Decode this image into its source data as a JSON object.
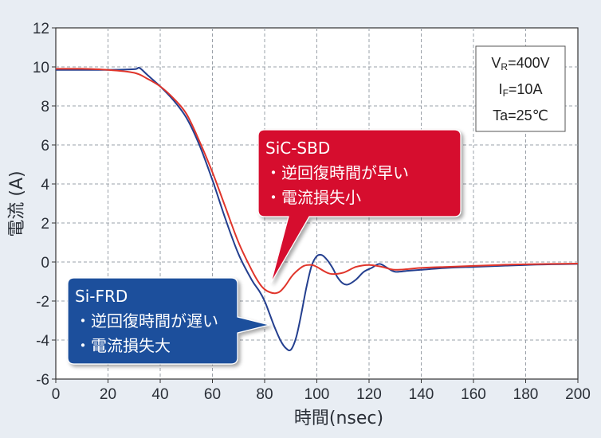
{
  "chart_data": {
    "type": "line",
    "xlabel": "時間(nsec)",
    "ylabel": "電流 (A)",
    "xlim": [
      0,
      200
    ],
    "ylim": [
      -6,
      12
    ],
    "xticks": [
      0,
      20,
      40,
      60,
      80,
      100,
      120,
      140,
      160,
      180,
      200
    ],
    "yticks": [
      -6,
      -4,
      -2,
      0,
      2,
      4,
      6,
      8,
      10,
      12
    ],
    "grid": true,
    "conditions": [
      "VR=400V",
      "IF=10A",
      "Ta=25℃"
    ],
    "series": [
      {
        "name": "Si-FRD",
        "color": "#243f8f",
        "x": [
          0,
          10,
          20,
          30,
          32,
          35,
          40,
          45,
          50,
          55,
          60,
          65,
          70,
          75,
          78,
          80,
          82,
          84,
          86,
          88,
          90,
          92,
          94,
          96,
          98,
          100,
          102,
          104,
          106,
          108,
          110,
          112,
          115,
          118,
          121,
          124,
          127,
          130,
          135,
          140,
          150,
          160,
          170,
          180,
          190,
          200
        ],
        "values": [
          9.85,
          9.85,
          9.85,
          9.88,
          9.95,
          9.6,
          9.0,
          8.3,
          7.4,
          6.0,
          4.2,
          2.2,
          0.4,
          -0.9,
          -1.5,
          -2.0,
          -2.7,
          -3.4,
          -4.0,
          -4.4,
          -4.5,
          -3.9,
          -2.7,
          -1.3,
          -0.2,
          0.3,
          0.35,
          0.1,
          -0.3,
          -0.8,
          -1.1,
          -1.15,
          -0.9,
          -0.5,
          -0.3,
          -0.1,
          -0.3,
          -0.5,
          -0.45,
          -0.4,
          -0.3,
          -0.25,
          -0.2,
          -0.15,
          -0.12,
          -0.1
        ]
      },
      {
        "name": "SiC-SBD",
        "color": "#e0352b",
        "x": [
          0,
          10,
          20,
          30,
          35,
          40,
          45,
          50,
          55,
          60,
          65,
          70,
          75,
          78,
          80,
          82,
          84,
          86,
          88,
          90,
          92,
          95,
          98,
          100,
          105,
          110,
          115,
          120,
          125,
          130,
          140,
          150,
          160,
          170,
          180,
          190,
          200
        ],
        "values": [
          9.9,
          9.9,
          9.85,
          9.7,
          9.4,
          9.0,
          8.4,
          7.6,
          6.2,
          4.6,
          2.8,
          1.0,
          -0.4,
          -1.1,
          -1.4,
          -1.55,
          -1.6,
          -1.5,
          -1.2,
          -0.8,
          -0.5,
          -0.2,
          -0.15,
          -0.25,
          -0.6,
          -0.55,
          -0.25,
          -0.15,
          -0.25,
          -0.4,
          -0.3,
          -0.25,
          -0.2,
          -0.15,
          -0.12,
          -0.1,
          -0.08
        ]
      }
    ],
    "annotations": [
      {
        "title": "SiC-SBD",
        "lines": [
          "・逆回復時間が早い",
          "・電流損失小"
        ],
        "color": "#d6102f"
      },
      {
        "title": "Si-FRD",
        "lines": [
          "・逆回復時間が遅い",
          "・電流損失大"
        ],
        "color": "#1f4f9c"
      }
    ]
  }
}
